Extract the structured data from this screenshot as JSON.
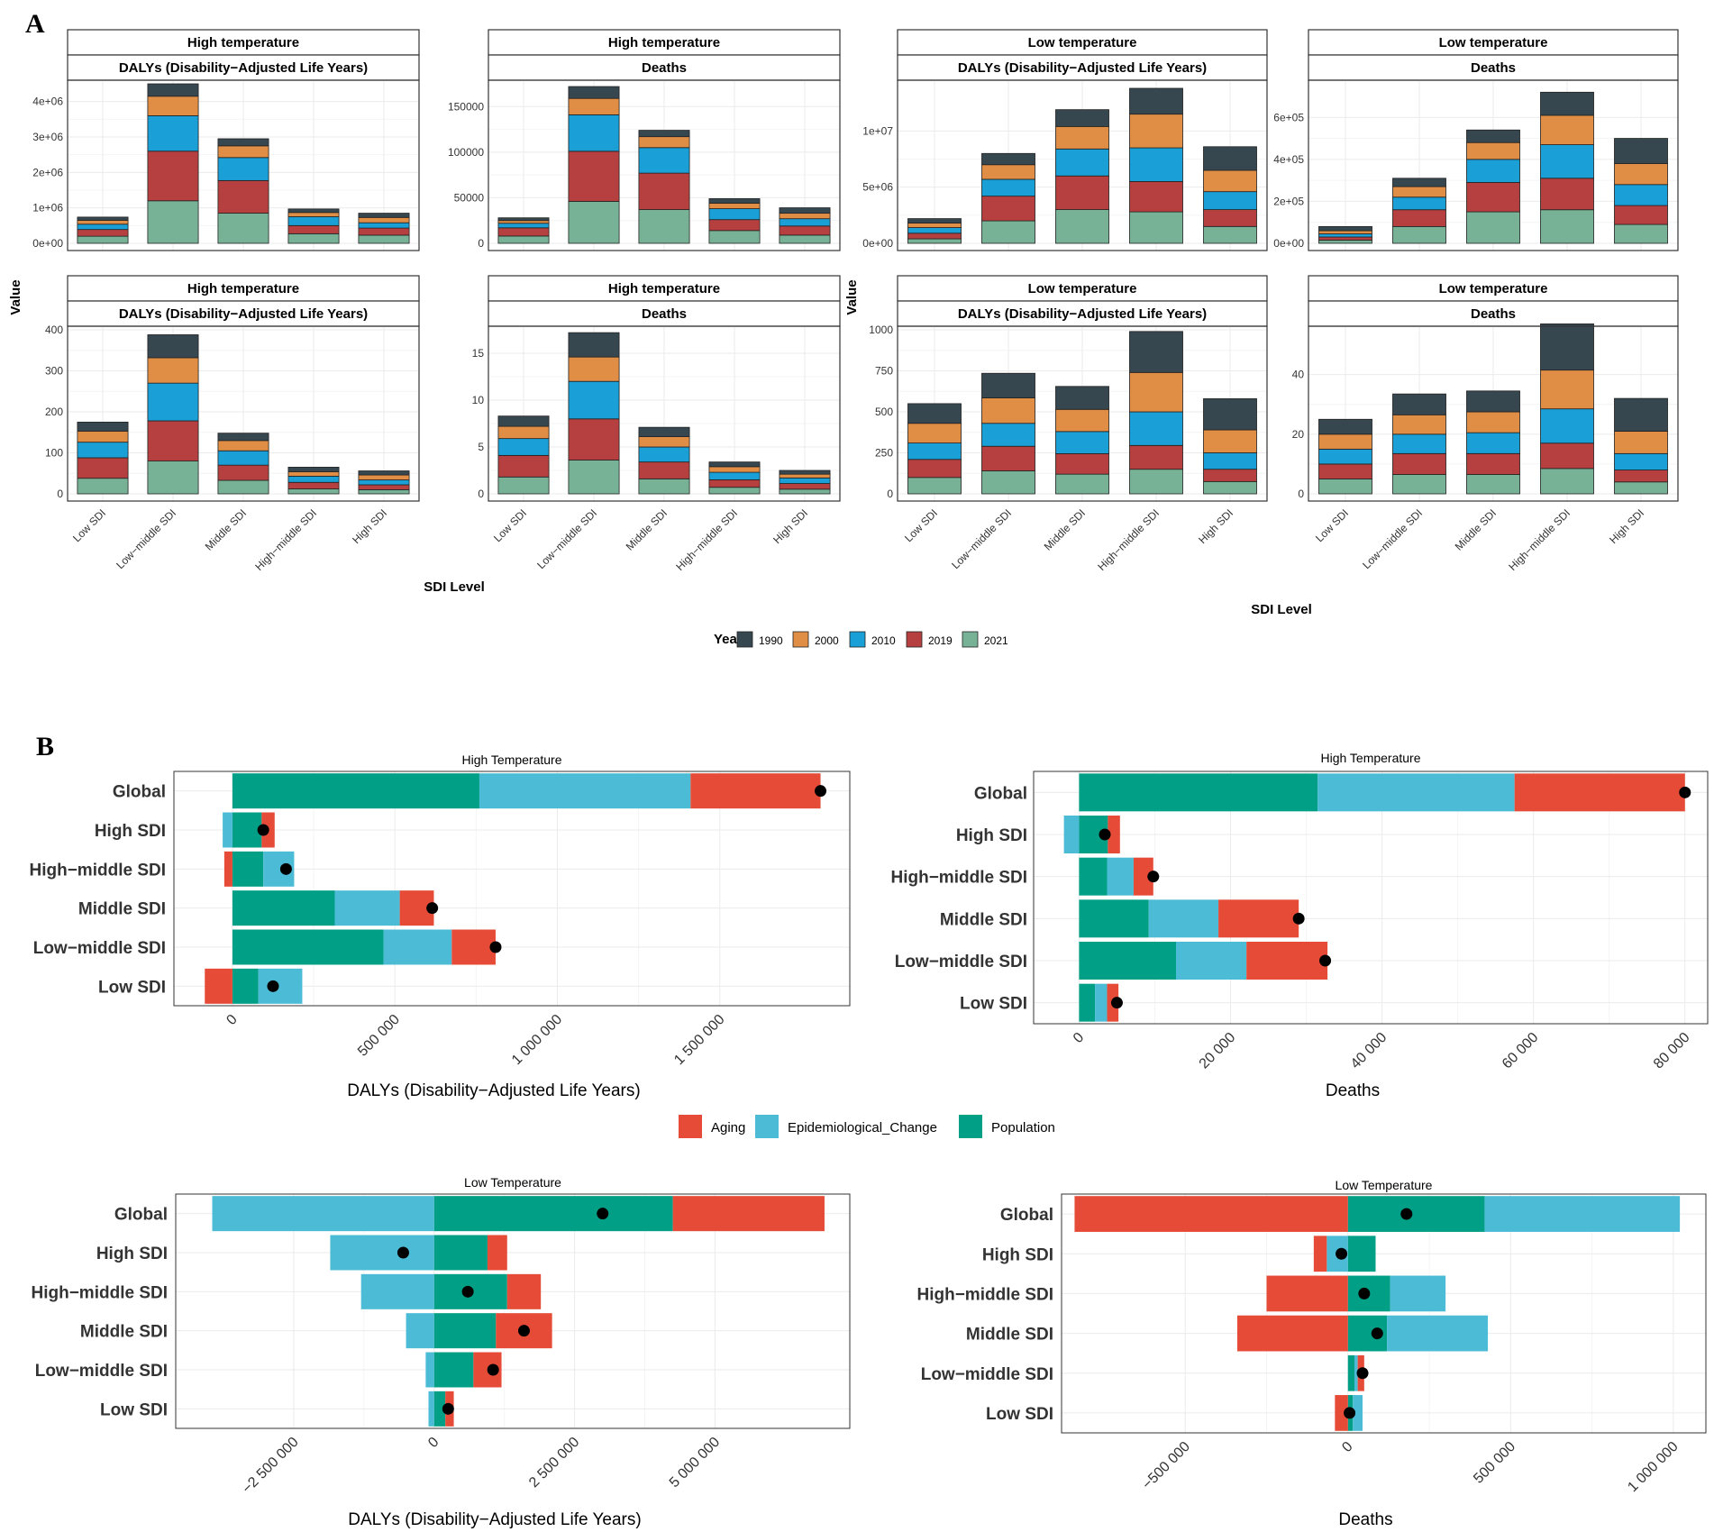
{
  "panel_labels": {
    "a": "A",
    "b": "B"
  },
  "colors": {
    "y1990": "#37474f",
    "y2000": "#e08e45",
    "y2010": "#1a9fd6",
    "y2019": "#b5403f",
    "y2021": "#78b296",
    "aging": "#e54b36",
    "epi": "#4cbcd6",
    "population": "#009f86",
    "grid": "#ebebeb",
    "border": "#333333"
  },
  "panelA": {
    "y_axis_title_left": "Value",
    "y_axis_title_right": "Value",
    "x_axis_title_left": "SDI Level",
    "x_axis_title_right": "SDI Level",
    "legend": {
      "title": "Year",
      "items": [
        "1990",
        "2000",
        "2010",
        "2019",
        "2021"
      ]
    }
  },
  "panelB": {
    "legend": {
      "items": [
        "Aging",
        "Epidemiological_Change",
        "Population"
      ]
    }
  },
  "chart_data": [
    {
      "type": "bar",
      "stacked": true,
      "strip1": "High temperature",
      "strip2": "DALYs (Disability−Adjusted Life Years)",
      "categories": [
        "Low SDI",
        "Low−middle SDI",
        "Middle SDI",
        "High−middle SDI",
        "High SDI"
      ],
      "series": [
        {
          "name": "2021",
          "values": [
            200000,
            1200000,
            850000,
            270000,
            230000
          ]
        },
        {
          "name": "2019",
          "values": [
            190000,
            1400000,
            920000,
            230000,
            200000
          ]
        },
        {
          "name": "2010",
          "values": [
            150000,
            1000000,
            650000,
            250000,
            150000
          ]
        },
        {
          "name": "2000",
          "values": [
            110000,
            550000,
            330000,
            120000,
            150000
          ]
        },
        {
          "name": "1990",
          "values": [
            90000,
            350000,
            200000,
            100000,
            120000
          ]
        }
      ],
      "ylim": [
        0,
        4500000
      ],
      "yticks": [
        0,
        1000000,
        2000000,
        3000000,
        4000000
      ],
      "ytick_labels": [
        "0e+00",
        "1e+06",
        "2e+06",
        "3e+06",
        "4e+06"
      ]
    },
    {
      "type": "bar",
      "stacked": true,
      "strip1": "High temperature",
      "strip2": "Deaths",
      "categories": [
        "Low SDI",
        "Low−middle SDI",
        "Middle SDI",
        "High−middle SDI",
        "High SDI"
      ],
      "series": [
        {
          "name": "2021",
          "values": [
            8000,
            46000,
            37000,
            14000,
            9000
          ]
        },
        {
          "name": "2019",
          "values": [
            9000,
            55000,
            40000,
            12000,
            10000
          ]
        },
        {
          "name": "2010",
          "values": [
            5000,
            40000,
            28000,
            12000,
            8000
          ]
        },
        {
          "name": "2000",
          "values": [
            3000,
            18000,
            12000,
            6000,
            6000
          ]
        },
        {
          "name": "1990",
          "values": [
            3000,
            13000,
            7000,
            5000,
            6000
          ]
        }
      ],
      "ylim": [
        0,
        175000
      ],
      "yticks": [
        0,
        50000,
        100000,
        150000
      ],
      "ytick_labels": [
        "0",
        "50000",
        "100000",
        "150000"
      ]
    },
    {
      "type": "bar",
      "stacked": true,
      "strip1": "Low temperature",
      "strip2": "DALYs (Disability−Adjusted Life Years)",
      "categories": [
        "Low SDI",
        "Low−middle SDI",
        "Middle SDI",
        "High−middle SDI",
        "High SDI"
      ],
      "series": [
        {
          "name": "2021",
          "values": [
            400000,
            2000000,
            3000000,
            2800000,
            1500000
          ]
        },
        {
          "name": "2019",
          "values": [
            500000,
            2200000,
            3000000,
            2700000,
            1500000
          ]
        },
        {
          "name": "2010",
          "values": [
            500000,
            1500000,
            2400000,
            3000000,
            1600000
          ]
        },
        {
          "name": "2000",
          "values": [
            400000,
            1300000,
            2000000,
            3000000,
            1900000
          ]
        },
        {
          "name": "1990",
          "values": [
            400000,
            1000000,
            1500000,
            2300000,
            2100000
          ]
        }
      ],
      "ylim": [
        0,
        14200000
      ],
      "yticks": [
        0,
        5000000,
        10000000
      ],
      "ytick_labels": [
        "0e+00",
        "5e+06",
        "1e+07"
      ]
    },
    {
      "type": "bar",
      "stacked": true,
      "strip1": "Low temperature",
      "strip2": "Deaths",
      "categories": [
        "Low SDI",
        "Low−middle SDI",
        "Middle SDI",
        "High−middle SDI",
        "High SDI"
      ],
      "series": [
        {
          "name": "2021",
          "values": [
            15000,
            80000,
            150000,
            160000,
            90000
          ]
        },
        {
          "name": "2019",
          "values": [
            15000,
            80000,
            140000,
            150000,
            90000
          ]
        },
        {
          "name": "2010",
          "values": [
            15000,
            60000,
            110000,
            160000,
            100000
          ]
        },
        {
          "name": "2000",
          "values": [
            15000,
            50000,
            80000,
            140000,
            100000
          ]
        },
        {
          "name": "1990",
          "values": [
            20000,
            40000,
            60000,
            110000,
            120000
          ]
        }
      ],
      "ylim": [
        0,
        760000
      ],
      "yticks": [
        0,
        200000,
        400000,
        600000
      ],
      "ytick_labels": [
        "0e+00",
        "2e+05",
        "4e+05",
        "6e+05"
      ]
    },
    {
      "type": "bar",
      "stacked": true,
      "strip1": "High temperature",
      "strip2": "DALYs (Disability−Adjusted Life Years)",
      "categories": [
        "Low SDI",
        "Low−middle SDI",
        "Middle SDI",
        "High−middle SDI",
        "High SDI"
      ],
      "series": [
        {
          "name": "2021",
          "values": [
            38,
            80,
            33,
            12,
            10
          ]
        },
        {
          "name": "2019",
          "values": [
            50,
            98,
            37,
            16,
            12
          ]
        },
        {
          "name": "2010",
          "values": [
            38,
            92,
            35,
            15,
            12
          ]
        },
        {
          "name": "2000",
          "values": [
            27,
            62,
            25,
            11,
            12
          ]
        },
        {
          "name": "1990",
          "values": [
            22,
            56,
            18,
            11,
            10
          ]
        }
      ],
      "ylim": [
        0,
        400
      ],
      "yticks": [
        0,
        100,
        200,
        300,
        400
      ],
      "ytick_labels": [
        "0",
        "100",
        "200",
        "300",
        "400"
      ]
    },
    {
      "type": "bar",
      "stacked": true,
      "strip1": "High temperature",
      "strip2": "Deaths",
      "categories": [
        "Low SDI",
        "Low−middle SDI",
        "Middle SDI",
        "High−middle SDI",
        "High SDI"
      ],
      "series": [
        {
          "name": "2021",
          "values": [
            1.8,
            3.6,
            1.6,
            0.7,
            0.5
          ]
        },
        {
          "name": "2019",
          "values": [
            2.3,
            4.4,
            1.8,
            0.8,
            0.6
          ]
        },
        {
          "name": "2010",
          "values": [
            1.8,
            4.0,
            1.6,
            0.8,
            0.6
          ]
        },
        {
          "name": "2000",
          "values": [
            1.3,
            2.6,
            1.1,
            0.6,
            0.4
          ]
        },
        {
          "name": "1990",
          "values": [
            1.1,
            2.6,
            1.0,
            0.5,
            0.4
          ]
        }
      ],
      "ylim": [
        0,
        17.5
      ],
      "yticks": [
        0,
        5,
        10,
        15
      ],
      "ytick_labels": [
        "0",
        "5",
        "10",
        "15"
      ]
    },
    {
      "type": "bar",
      "stacked": true,
      "strip1": "Low temperature",
      "strip2": "DALYs (Disability−Adjusted Life Years)",
      "categories": [
        "Low SDI",
        "Low−middle SDI",
        "Middle SDI",
        "High−middle SDI",
        "High SDI"
      ],
      "series": [
        {
          "name": "2021",
          "values": [
            100,
            140,
            120,
            150,
            75
          ]
        },
        {
          "name": "2019",
          "values": [
            110,
            150,
            125,
            145,
            75
          ]
        },
        {
          "name": "2010",
          "values": [
            100,
            140,
            135,
            205,
            100
          ]
        },
        {
          "name": "2000",
          "values": [
            120,
            155,
            135,
            240,
            140
          ]
        },
        {
          "name": "1990",
          "values": [
            120,
            150,
            140,
            250,
            190
          ]
        }
      ],
      "ylim": [
        0,
        1000
      ],
      "yticks": [
        0,
        250,
        500,
        750,
        1000
      ],
      "ytick_labels": [
        "0",
        "250",
        "500",
        "750",
        "1000"
      ]
    },
    {
      "type": "bar",
      "stacked": true,
      "strip1": "Low temperature",
      "strip2": "Deaths",
      "categories": [
        "Low SDI",
        "Low−middle SDI",
        "Middle SDI",
        "High−middle SDI",
        "High SDI"
      ],
      "series": [
        {
          "name": "2021",
          "values": [
            5,
            6.5,
            6.5,
            8.5,
            4
          ]
        },
        {
          "name": "2019",
          "values": [
            5,
            7,
            7,
            8.5,
            4
          ]
        },
        {
          "name": "2010",
          "values": [
            5,
            6.5,
            7,
            11.5,
            5.5
          ]
        },
        {
          "name": "2000",
          "values": [
            5,
            6.5,
            7,
            13,
            7.5
          ]
        },
        {
          "name": "1990",
          "values": [
            5,
            7,
            7,
            15.5,
            11
          ]
        }
      ],
      "ylim": [
        0,
        55
      ],
      "yticks": [
        0,
        20,
        40
      ],
      "ytick_labels": [
        "0",
        "20",
        "40"
      ]
    },
    {
      "type": "bar",
      "orientation": "horizontal",
      "decomposition": true,
      "title": "High Temperature",
      "xlabel": "DALYs (Disability−Adjusted Life Years)",
      "categories": [
        "Global",
        "High SDI",
        "High−middle SDI",
        "Middle SDI",
        "Low−middle SDI",
        "Low SDI"
      ],
      "population": [
        760000,
        90000,
        95000,
        315000,
        465000,
        80000
      ],
      "epi": [
        650000,
        -30000,
        95000,
        200000,
        210000,
        135000
      ],
      "aging": [
        400000,
        40000,
        -25000,
        105000,
        135000,
        -85000
      ],
      "total": [
        1810000,
        95000,
        165000,
        615000,
        810000,
        125000
      ],
      "xlim": [
        -180000,
        1900000
      ],
      "xticks": [
        0,
        500000,
        1000000,
        1500000
      ],
      "xtick_labels": [
        "0",
        "500 000",
        "1 000 000",
        "1 500 000"
      ]
    },
    {
      "type": "bar",
      "orientation": "horizontal",
      "decomposition": true,
      "title": "High Temperature",
      "xlabel": "Deaths",
      "categories": [
        "Global",
        "High SDI",
        "High−middle SDI",
        "Middle SDI",
        "Low−middle SDI",
        "Low SDI"
      ],
      "population": [
        31500,
        3800,
        3700,
        9200,
        12800,
        2100
      ],
      "epi": [
        26000,
        -2000,
        3500,
        9200,
        9300,
        1600
      ],
      "aging": [
        22500,
        1600,
        2600,
        10600,
        10700,
        1500
      ],
      "total": [
        80000,
        3400,
        9800,
        29000,
        32500,
        5000
      ],
      "xlim": [
        -6000,
        83000
      ],
      "xticks": [
        0,
        20000,
        40000,
        60000,
        80000
      ],
      "xtick_labels": [
        "0",
        "20 000",
        "40 000",
        "60 000",
        "80 000"
      ]
    },
    {
      "type": "bar",
      "orientation": "horizontal",
      "decomposition": true,
      "title": "Low Temperature",
      "xlabel": "DALYs (Disability−Adjusted Life Years)",
      "categories": [
        "Global",
        "High SDI",
        "High−middle SDI",
        "Middle SDI",
        "Low−middle SDI",
        "Low SDI"
      ],
      "population": [
        4250000,
        950000,
        1300000,
        1100000,
        700000,
        200000
      ],
      "epi": [
        -3950000,
        -1850000,
        -1300000,
        -500000,
        -150000,
        -100000
      ],
      "aging": [
        2700000,
        350000,
        600000,
        1000000,
        500000,
        150000
      ],
      "total": [
        3000000,
        -550000,
        600000,
        1600000,
        1050000,
        250000
      ],
      "xlim": [
        -4600000,
        7400000
      ],
      "xticks": [
        -2500000,
        0,
        2500000,
        5000000
      ],
      "xtick_labels": [
        "−2 500 000",
        "0",
        "2 500 000",
        "5 000 000"
      ]
    },
    {
      "type": "bar",
      "orientation": "horizontal",
      "decomposition": true,
      "title": "Low Temperature",
      "xlabel": "Deaths",
      "categories": [
        "Global",
        "High SDI",
        "High−middle SDI",
        "Middle SDI",
        "Low−middle SDI",
        "Low SDI"
      ],
      "population": [
        420000,
        85000,
        130000,
        120000,
        20000,
        15000
      ],
      "epi": [
        600000,
        -65000,
        170000,
        310000,
        10000,
        30000
      ],
      "aging": [
        -840000,
        -40000,
        -250000,
        -340000,
        20000,
        -40000
      ],
      "total": [
        180000,
        -20000,
        50000,
        90000,
        45000,
        5000
      ],
      "xlim": [
        -880000,
        1100000
      ],
      "xticks": [
        -500000,
        0,
        500000,
        1000000
      ],
      "xtick_labels": [
        "−500 000",
        "0",
        "500 000",
        "1 000 000"
      ]
    }
  ]
}
